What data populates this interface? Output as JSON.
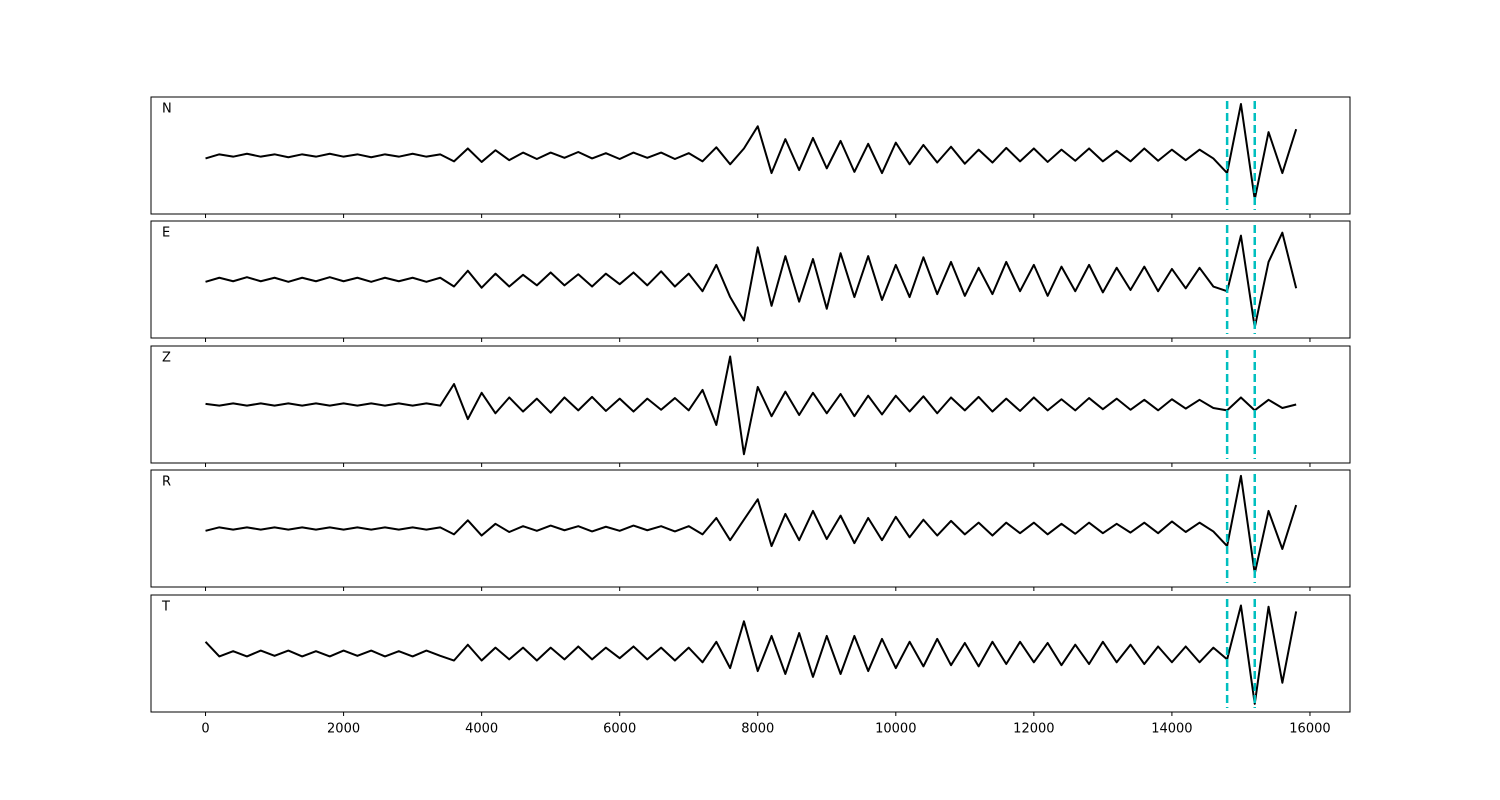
{
  "chart_data": {
    "type": "line",
    "x": [
      0,
      200,
      400,
      600,
      800,
      1000,
      1200,
      1400,
      1600,
      1800,
      2000,
      2200,
      2400,
      2600,
      2800,
      3000,
      3200,
      3400,
      3600,
      3800,
      4000,
      4200,
      4400,
      4600,
      4800,
      5000,
      5200,
      5400,
      5600,
      5800,
      6000,
      6200,
      6400,
      6600,
      6800,
      7000,
      7200,
      7400,
      7600,
      7800,
      8000,
      8200,
      8400,
      8600,
      8800,
      9000,
      9200,
      9400,
      9600,
      9800,
      10000,
      10200,
      10400,
      10600,
      10800,
      11000,
      11200,
      11400,
      11600,
      11800,
      12000,
      12200,
      12400,
      12600,
      12800,
      13000,
      13200,
      13400,
      13600,
      13800,
      14000,
      14200,
      14400,
      14600,
      14800,
      15000,
      15200,
      15400,
      15600,
      15800
    ],
    "xlim": [
      -790,
      16580
    ],
    "xticks": [
      0,
      2000,
      4000,
      6000,
      8000,
      10000,
      12000,
      14000,
      16000
    ],
    "ylim": [
      -1,
      1
    ],
    "vlines": [
      14800,
      15200
    ],
    "vline_color": "#00bfbf",
    "series": [
      {
        "name": "N",
        "color": "#000000",
        "values": [
          -0.05,
          0.02,
          -0.02,
          0.03,
          -0.02,
          0.02,
          -0.03,
          0.02,
          -0.02,
          0.03,
          -0.02,
          0.02,
          -0.03,
          0.02,
          -0.02,
          0.03,
          -0.02,
          0.02,
          -0.1,
          0.12,
          -0.11,
          0.09,
          -0.08,
          0.05,
          -0.06,
          0.05,
          -0.04,
          0.06,
          -0.05,
          0.04,
          -0.06,
          0.05,
          -0.04,
          0.05,
          -0.06,
          0.04,
          -0.1,
          0.14,
          -0.15,
          0.12,
          0.5,
          -0.3,
          0.28,
          -0.25,
          0.3,
          -0.22,
          0.25,
          -0.28,
          0.2,
          -0.3,
          0.22,
          -0.15,
          0.18,
          -0.12,
          0.15,
          -0.14,
          0.1,
          -0.12,
          0.13,
          -0.1,
          0.12,
          -0.11,
          0.1,
          -0.09,
          0.12,
          -0.1,
          0.08,
          -0.1,
          0.12,
          -0.09,
          0.1,
          -0.08,
          0.1,
          -0.05,
          -0.3,
          0.88,
          -0.75,
          0.4,
          -0.3,
          0.45
        ]
      },
      {
        "name": "E",
        "color": "#000000",
        "values": [
          -0.04,
          0.03,
          -0.03,
          0.04,
          -0.03,
          0.03,
          -0.04,
          0.03,
          -0.03,
          0.04,
          -0.03,
          0.03,
          -0.04,
          0.03,
          -0.03,
          0.03,
          -0.04,
          0.03,
          -0.12,
          0.15,
          -0.14,
          0.1,
          -0.12,
          0.08,
          -0.1,
          0.12,
          -0.1,
          0.09,
          -0.12,
          0.1,
          -0.08,
          0.12,
          -0.1,
          0.14,
          -0.12,
          0.1,
          -0.2,
          0.25,
          -0.3,
          -0.7,
          0.55,
          -0.45,
          0.4,
          -0.38,
          0.35,
          -0.5,
          0.45,
          -0.3,
          0.4,
          -0.35,
          0.25,
          -0.3,
          0.38,
          -0.25,
          0.3,
          -0.28,
          0.2,
          -0.25,
          0.3,
          -0.2,
          0.25,
          -0.28,
          0.22,
          -0.2,
          0.25,
          -0.22,
          0.2,
          -0.18,
          0.22,
          -0.2,
          0.18,
          -0.15,
          0.2,
          -0.12,
          -0.2,
          0.75,
          -0.82,
          0.3,
          0.8,
          -0.15
        ]
      },
      {
        "name": "Z",
        "color": "#000000",
        "values": [
          0.01,
          -0.02,
          0.02,
          -0.02,
          0.02,
          -0.02,
          0.02,
          -0.02,
          0.02,
          -0.02,
          0.02,
          -0.02,
          0.02,
          -0.02,
          0.02,
          -0.02,
          0.02,
          -0.02,
          0.35,
          -0.25,
          0.2,
          -0.15,
          0.12,
          -0.12,
          0.1,
          -0.14,
          0.12,
          -0.1,
          0.13,
          -0.11,
          0.1,
          -0.12,
          0.1,
          -0.09,
          0.11,
          -0.1,
          0.25,
          -0.35,
          0.82,
          -0.85,
          0.3,
          -0.2,
          0.22,
          -0.18,
          0.2,
          -0.15,
          0.18,
          -0.2,
          0.15,
          -0.17,
          0.15,
          -0.12,
          0.14,
          -0.15,
          0.12,
          -0.1,
          0.13,
          -0.12,
          0.1,
          -0.11,
          0.12,
          -0.1,
          0.09,
          -0.1,
          0.11,
          -0.08,
          0.1,
          -0.09,
          0.08,
          -0.1,
          0.09,
          -0.07,
          0.08,
          -0.06,
          -0.1,
          0.12,
          -0.1,
          0.08,
          -0.06,
          0.0
        ]
      },
      {
        "name": "R",
        "color": "#000000",
        "values": [
          -0.04,
          0.02,
          -0.02,
          0.02,
          -0.02,
          0.02,
          -0.02,
          0.02,
          -0.02,
          0.02,
          -0.02,
          0.02,
          -0.02,
          0.02,
          -0.02,
          0.02,
          -0.02,
          0.02,
          -0.1,
          0.14,
          -0.12,
          0.08,
          -0.06,
          0.04,
          -0.04,
          0.05,
          -0.03,
          0.04,
          -0.05,
          0.03,
          -0.04,
          0.05,
          -0.03,
          0.04,
          -0.05,
          0.04,
          -0.1,
          0.18,
          -0.2,
          0.15,
          0.5,
          -0.3,
          0.25,
          -0.2,
          0.3,
          -0.18,
          0.22,
          -0.25,
          0.18,
          -0.2,
          0.2,
          -0.15,
          0.15,
          -0.12,
          0.13,
          -0.1,
          0.1,
          -0.12,
          0.1,
          -0.08,
          0.1,
          -0.1,
          0.08,
          -0.09,
          0.1,
          -0.08,
          0.08,
          -0.07,
          0.1,
          -0.08,
          0.12,
          -0.06,
          0.1,
          -0.05,
          -0.3,
          0.9,
          -0.77,
          0.3,
          -0.35,
          0.4
        ]
      },
      {
        "name": "T",
        "color": "#000000",
        "values": [
          0.2,
          -0.05,
          0.04,
          -0.05,
          0.05,
          -0.04,
          0.05,
          -0.05,
          0.04,
          -0.05,
          0.05,
          -0.04,
          0.05,
          -0.05,
          0.04,
          -0.05,
          0.05,
          -0.04,
          -0.12,
          0.15,
          -0.12,
          0.1,
          -0.1,
          0.1,
          -0.12,
          0.1,
          -0.1,
          0.12,
          -0.1,
          0.1,
          -0.08,
          0.12,
          -0.1,
          0.1,
          -0.12,
          0.1,
          -0.15,
          0.2,
          -0.25,
          0.55,
          -0.3,
          0.3,
          -0.35,
          0.35,
          -0.4,
          0.3,
          -0.35,
          0.3,
          -0.3,
          0.25,
          -0.25,
          0.2,
          -0.22,
          0.25,
          -0.2,
          0.18,
          -0.22,
          0.2,
          -0.18,
          0.2,
          -0.15,
          0.18,
          -0.2,
          0.15,
          -0.18,
          0.2,
          -0.15,
          0.15,
          -0.18,
          0.12,
          -0.15,
          0.12,
          -0.15,
          0.1,
          -0.1,
          0.82,
          -0.86,
          0.8,
          -0.5,
          0.72
        ]
      }
    ]
  }
}
